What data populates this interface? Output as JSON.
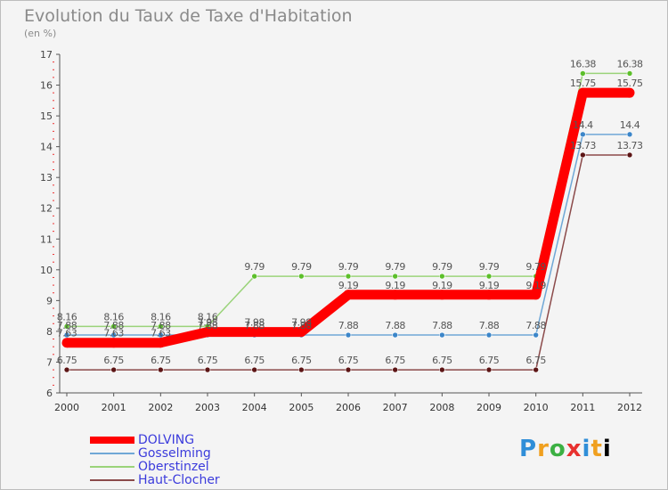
{
  "chart_data": {
    "type": "line",
    "title": "Evolution du Taux de Taxe d'Habitation",
    "units": "(en %)",
    "xlabel": "",
    "ylabel": "(en %)",
    "categories": [
      "2000",
      "2001",
      "2002",
      "2003",
      "2004",
      "2005",
      "2006",
      "2007",
      "2008",
      "2009",
      "2010",
      "2011",
      "2012"
    ],
    "ylim": [
      6,
      17
    ],
    "yticks": [
      "6",
      "7",
      "8",
      "9",
      "10",
      "11",
      "12",
      "13",
      "14",
      "15",
      "16",
      "17"
    ],
    "grid": false,
    "legend_position": "bottom-left",
    "series": [
      {
        "name": "DOLVING",
        "color": "#ff0000",
        "marker": "#ff0000",
        "values": [
          7.63,
          7.63,
          7.63,
          7.98,
          7.98,
          7.98,
          9.19,
          9.19,
          9.19,
          9.19,
          9.19,
          15.75,
          15.75
        ],
        "labels": [
          "7.63",
          "7.63",
          "7.63",
          "7.98",
          "7.98",
          "7.98",
          "9.19",
          "9.19",
          "9.19",
          "9.19",
          "9.19",
          "15.75",
          "15.75"
        ]
      },
      {
        "name": "Gosselming",
        "color": "#6fa7d6",
        "marker": "#3c86c9",
        "values": [
          7.88,
          7.88,
          7.88,
          7.88,
          7.88,
          7.88,
          7.88,
          7.88,
          7.88,
          7.88,
          7.88,
          14.4,
          14.4
        ],
        "labels": [
          "7.88",
          "7.88",
          "7.88",
          "7.88",
          "7.88",
          "7.88",
          "7.88",
          "7.88",
          "7.88",
          "7.88",
          "7.88",
          "14.4",
          "14.4"
        ]
      },
      {
        "name": "Oberstinzel",
        "color": "#9ad37a",
        "marker": "#5cbf2a",
        "values": [
          8.16,
          8.16,
          8.16,
          8.16,
          9.79,
          9.79,
          9.79,
          9.79,
          9.79,
          9.79,
          9.79,
          16.38,
          16.38
        ],
        "labels": [
          "8.16",
          "8.16",
          "8.16",
          "8.16",
          "9.79",
          "9.79",
          "9.79",
          "9.79",
          "9.79",
          "9.79",
          "9.79",
          "16.38",
          "16.38"
        ]
      },
      {
        "name": "Haut-Clocher",
        "color": "#8b4a4a",
        "marker": "#5c1515",
        "values": [
          6.75,
          6.75,
          6.75,
          6.75,
          6.75,
          6.75,
          6.75,
          6.75,
          6.75,
          6.75,
          6.75,
          13.73,
          13.73
        ],
        "labels": [
          "6.75",
          "6.75",
          "6.75",
          "6.75",
          "6.75",
          "6.75",
          "6.75",
          "6.75",
          "6.75",
          "6.75",
          "6.75",
          "13.73",
          "13.73"
        ]
      }
    ]
  },
  "logo": {
    "letters": [
      "P",
      "r",
      "o",
      "x",
      "i",
      "t",
      "i"
    ]
  }
}
